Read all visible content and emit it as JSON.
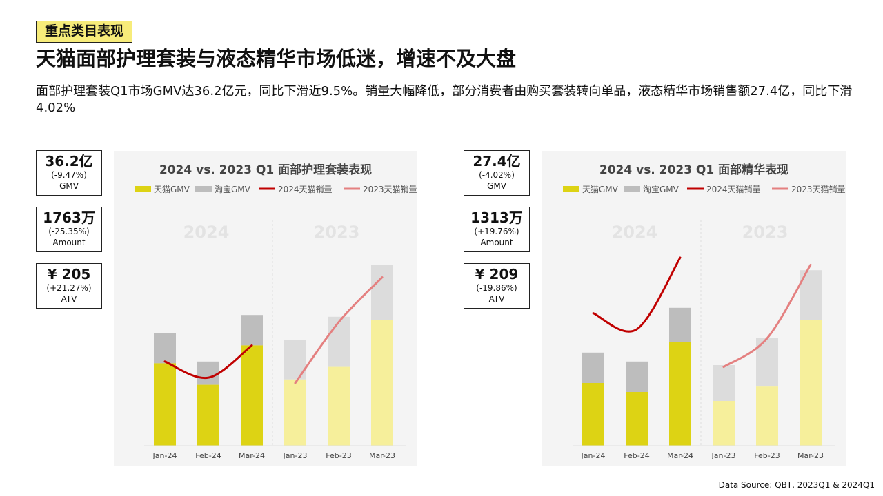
{
  "header": {
    "tag": "重点类目表现",
    "headline": "天猫面部护理套装与液态精华市场低迷，增速不及大盘",
    "summary": "面部护理套装Q1市场GMV达36.2亿元，同比下滑近9.5%。销量大幅降低，部分消费者由购买套装转向单品，液态精华市场销售额27.4亿，同比下滑4.02%"
  },
  "kpis_left": [
    {
      "value": "36.2亿",
      "change": "(-9.47%)",
      "label": "GMV"
    },
    {
      "value": "1763万",
      "change": "(-25.35%)",
      "label": "Amount"
    },
    {
      "value": "¥ 205",
      "change": "(+21.27%)",
      "label": "ATV"
    }
  ],
  "kpis_right": [
    {
      "value": "27.4亿",
      "change": "(-4.02%)",
      "label": "GMV"
    },
    {
      "value": "1313万",
      "change": "(+19.76%)",
      "label": "Amount"
    },
    {
      "value": "¥ 209",
      "change": "(-19.86%)",
      "label": "ATV"
    }
  ],
  "colors": {
    "tmall_2024": "#ddd314",
    "taobao_2024": "#bdbdbd",
    "tmall_2023": "#f6ef9b",
    "taobao_2023": "#dcdcdc",
    "line_2024": "#c00000",
    "line_2023": "#e48080",
    "panel_bg": "#f4f4f4"
  },
  "chart_data": [
    {
      "type": "bar",
      "title": "2024 vs. 2023 Q1 面部护理套装表现",
      "stacked": true,
      "legend": [
        "天猫GMV",
        "淘宝GMV",
        "2024天猫销量",
        "2023天猫销量"
      ],
      "legend_position": "top",
      "group_labels": [
        "2024",
        "2023"
      ],
      "categories": [
        "Jan-24",
        "Feb-24",
        "Mar-24",
        "Jan-23",
        "Feb-23",
        "Mar-23"
      ],
      "grid": false,
      "ylim": [
        0,
        100
      ],
      "series": [
        {
          "name": "天猫GMV",
          "values": [
            46,
            34,
            56,
            37,
            44,
            70
          ]
        },
        {
          "name": "淘宝GMV",
          "values": [
            17,
            13,
            17,
            22,
            28,
            31
          ]
        }
      ],
      "lines": [
        {
          "name": "2024天猫销量",
          "x": [
            "Jan-24",
            "Feb-24",
            "Mar-24"
          ],
          "values": [
            47,
            38,
            56
          ]
        },
        {
          "name": "2023天猫销量",
          "x": [
            "Jan-23",
            "Feb-23",
            "Mar-23"
          ],
          "values": [
            35,
            69,
            94
          ]
        }
      ]
    },
    {
      "type": "bar",
      "title": "2024 vs. 2023 Q1 面部精华表现",
      "stacked": true,
      "legend": [
        "天猫GMV",
        "淘宝GMV",
        "2024天猫销量",
        "2023天猫销量"
      ],
      "legend_position": "top",
      "group_labels": [
        "2024",
        "2023"
      ],
      "categories": [
        "Jan-24",
        "Feb-24",
        "Mar-24",
        "Jan-23",
        "Feb-23",
        "Mar-23"
      ],
      "grid": false,
      "ylim": [
        0,
        100
      ],
      "series": [
        {
          "name": "天猫GMV",
          "values": [
            35,
            30,
            58,
            25,
            33,
            70
          ]
        },
        {
          "name": "淘宝GMV",
          "values": [
            17,
            17,
            19,
            20,
            27,
            28
          ]
        }
      ],
      "lines": [
        {
          "name": "2024天猫销量",
          "x": [
            "Jan-24",
            "Feb-24",
            "Mar-24"
          ],
          "values": [
            74,
            65,
            105
          ]
        },
        {
          "name": "2023天猫销量",
          "x": [
            "Jan-23",
            "Feb-23",
            "Mar-23"
          ],
          "values": [
            44,
            60,
            101
          ]
        }
      ]
    }
  ],
  "source": "Data Source: QBT, 2023Q1 & 2024Q1"
}
